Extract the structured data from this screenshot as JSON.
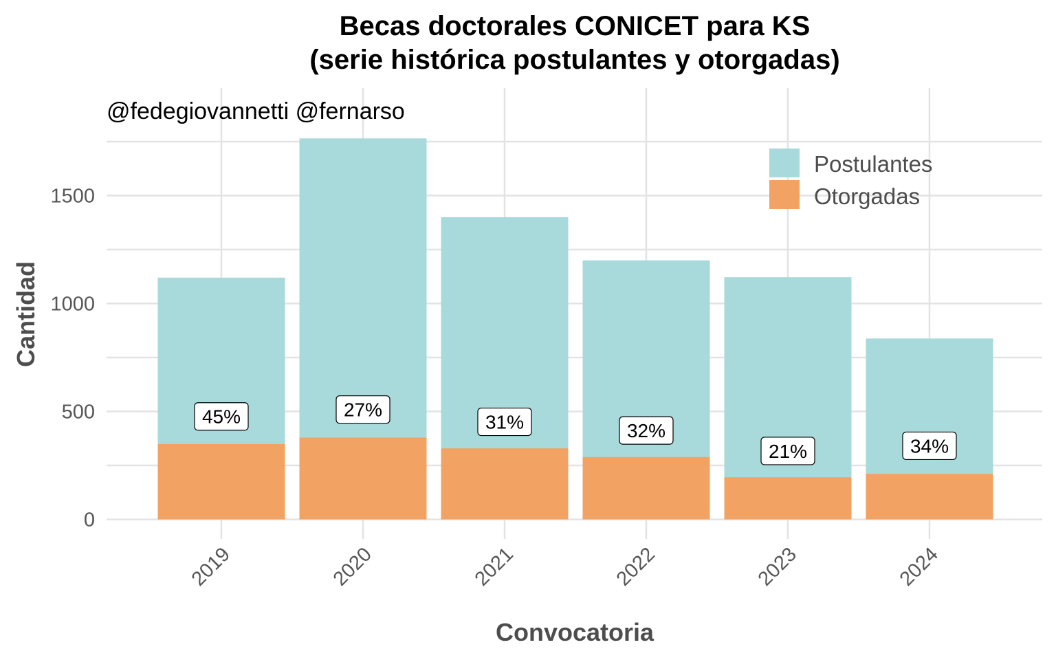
{
  "chart_data": {
    "type": "bar",
    "title": "Becas doctorales CONICET para KS",
    "subtitle": "(serie histórica postulantes y otorgadas)",
    "credit": "@fedegiovannetti @fernarso",
    "xlabel": "Convocatoria",
    "ylabel": "Cantidad",
    "categories": [
      "2019",
      "2020",
      "2021",
      "2022",
      "2023",
      "2024"
    ],
    "series": [
      {
        "name": "Postulantes",
        "color": "#a8d9db",
        "values": [
          1120,
          1765,
          1400,
          1200,
          1122,
          838
        ]
      },
      {
        "name": "Otorgadas",
        "color": "#f2a363",
        "values": [
          349,
          379,
          329,
          289,
          195,
          211
        ]
      }
    ],
    "percent_labels": [
      "45%",
      "27%",
      "31%",
      "32%",
      "21%",
      "34%"
    ],
    "percent_label_y": [
      477,
      509,
      452,
      412,
      317,
      341
    ],
    "yticks": [
      0,
      500,
      1000,
      1500
    ],
    "ylim": [
      -80,
      2000
    ],
    "bar_layout": "overlay",
    "grid": true,
    "legend_position": "top-right"
  }
}
